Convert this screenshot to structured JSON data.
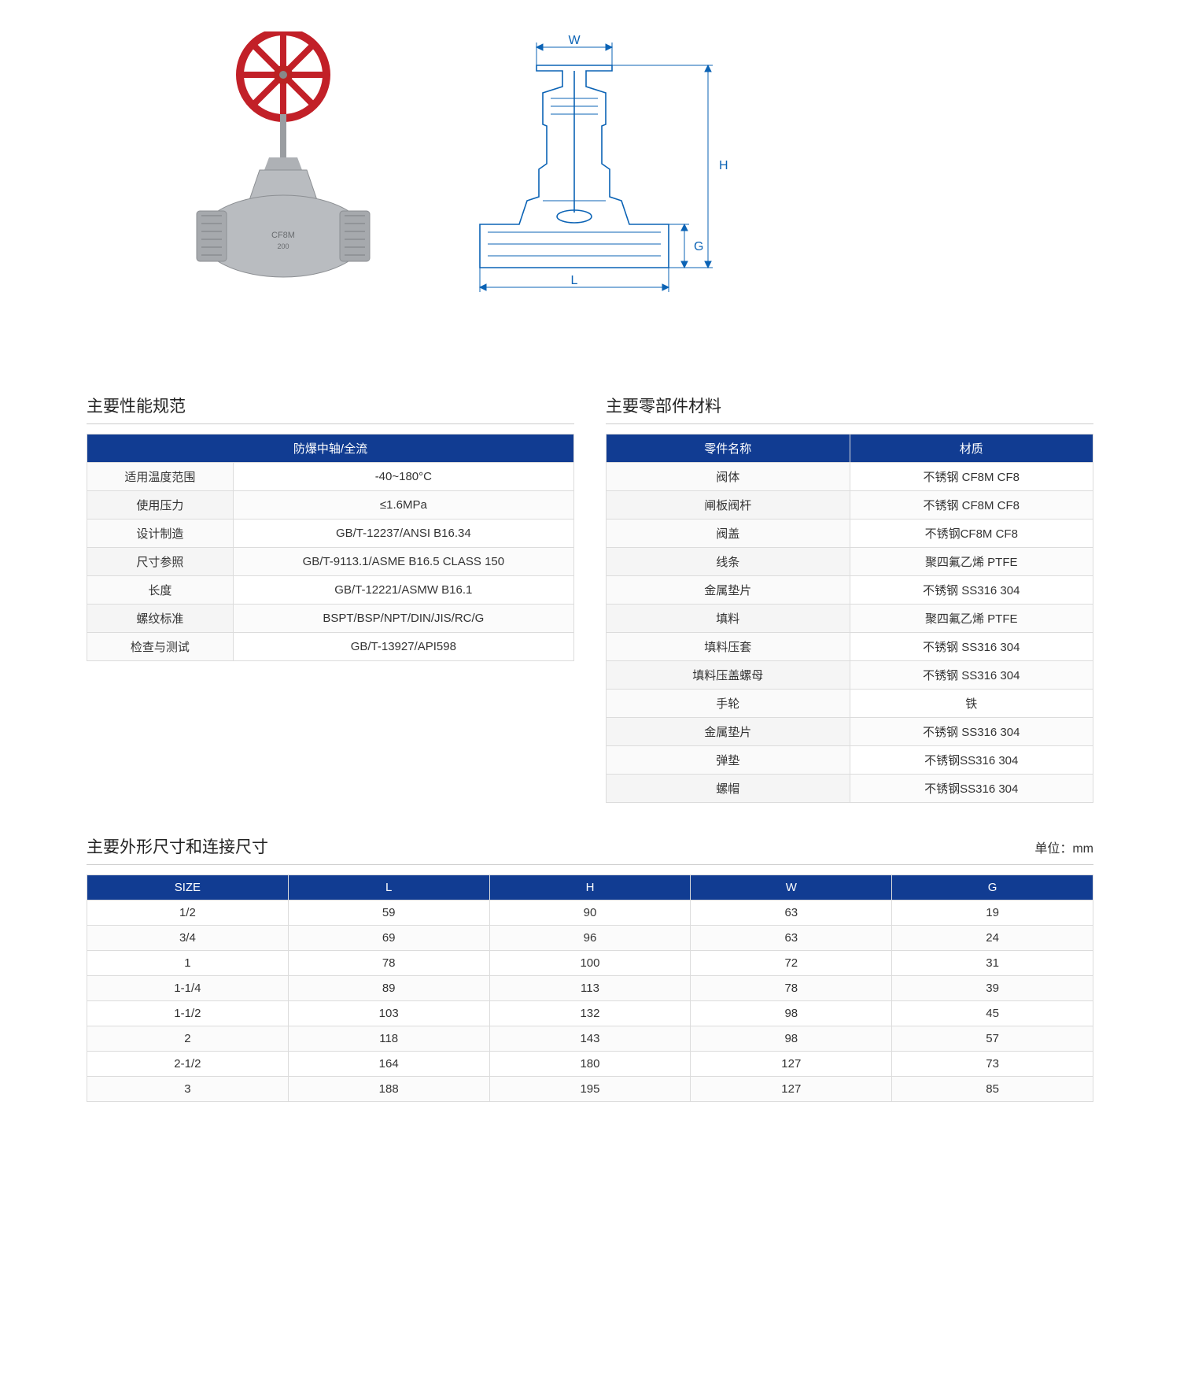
{
  "colors": {
    "header_bg": "#113c92",
    "header_fg": "#ffffff",
    "border": "#dcdcdc",
    "text": "#333333",
    "blueprint": "#0b63b5",
    "handwheel": "#c22028",
    "valve_body": "#b9bcc0"
  },
  "diagram_labels": {
    "W": "W",
    "H": "H",
    "G": "G",
    "L": "L"
  },
  "spec_title": "主要性能规范",
  "spec_header": "防爆中轴/全流",
  "spec_rows": [
    {
      "k": "适用温度范围",
      "v": "-40~180°C"
    },
    {
      "k": "使用压力",
      "v": "≤1.6MPa"
    },
    {
      "k": "设计制造",
      "v": "GB/T-12237/ANSI B16.34"
    },
    {
      "k": "尺寸参照",
      "v": "GB/T-9113.1/ASME B16.5 CLASS 150"
    },
    {
      "k": "长度",
      "v": "GB/T-12221/ASMW B16.1"
    },
    {
      "k": "螺纹标准",
      "v": "BSPT/BSP/NPT/DIN/JIS/RC/G"
    },
    {
      "k": "检查与测试",
      "v": "GB/T-13927/API598"
    }
  ],
  "mat_title": "主要零部件材料",
  "mat_headers": [
    "零件名称",
    "材质"
  ],
  "mat_rows": [
    {
      "k": "阀体",
      "v": "不锈钢 CF8M CF8"
    },
    {
      "k": "闸板阀杆",
      "v": "不锈钢 CF8M CF8"
    },
    {
      "k": "阀盖",
      "v": "不锈钢CF8M CF8"
    },
    {
      "k": "线条",
      "v": "聚四氟乙烯 PTFE"
    },
    {
      "k": "金属垫片",
      "v": "不锈钢 SS316 304"
    },
    {
      "k": "填料",
      "v": "聚四氟乙烯 PTFE"
    },
    {
      "k": "填料压套",
      "v": "不锈钢 SS316 304"
    },
    {
      "k": "填料压盖螺母",
      "v": "不锈钢 SS316 304"
    },
    {
      "k": "手轮",
      "v": "铁"
    },
    {
      "k": "金属垫片",
      "v": "不锈钢 SS316 304"
    },
    {
      "k": "弹垫",
      "v": "不锈钢SS316 304"
    },
    {
      "k": "螺帽",
      "v": "不锈钢SS316 304"
    }
  ],
  "dims_title": "主要外形尺寸和连接尺寸",
  "dims_unit": "单位：mm",
  "dims_headers": [
    "SIZE",
    "L",
    "H",
    "W",
    "G"
  ],
  "dims_rows": [
    [
      "1/2",
      "59",
      "90",
      "63",
      "19"
    ],
    [
      "3/4",
      "69",
      "96",
      "63",
      "24"
    ],
    [
      "1",
      "78",
      "100",
      "72",
      "31"
    ],
    [
      "1-1/4",
      "89",
      "113",
      "78",
      "39"
    ],
    [
      "1-1/2",
      "103",
      "132",
      "98",
      "45"
    ],
    [
      "2",
      "118",
      "143",
      "98",
      "57"
    ],
    [
      "2-1/2",
      "164",
      "180",
      "127",
      "73"
    ],
    [
      "3",
      "188",
      "195",
      "127",
      "85"
    ]
  ]
}
